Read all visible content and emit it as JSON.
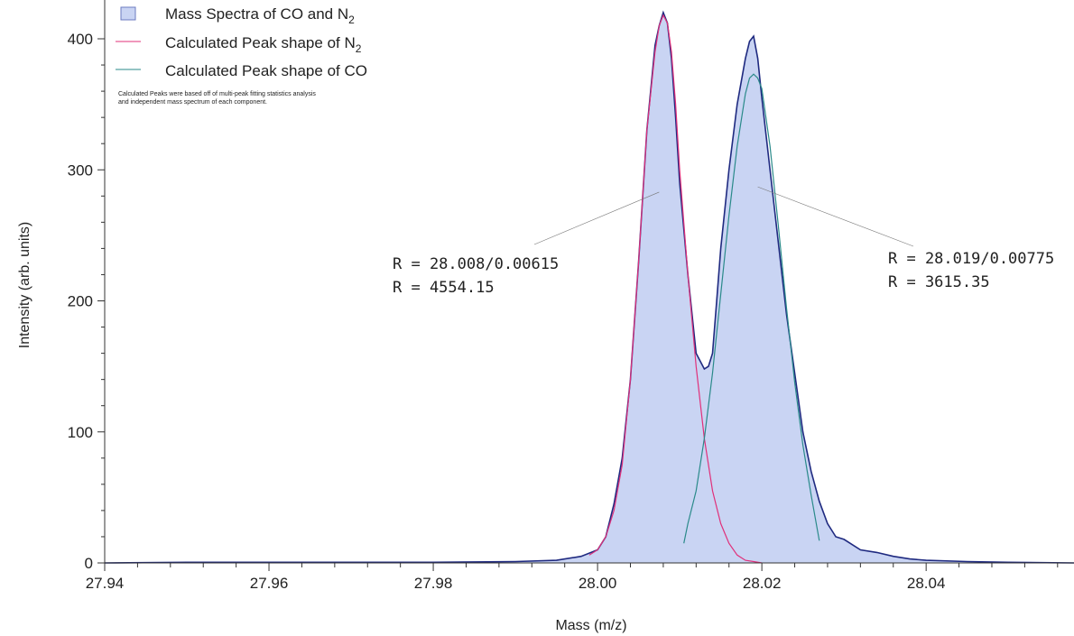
{
  "chart_data": {
    "type": "area",
    "xlabel": "Mass (m/z)",
    "ylabel": "Intensity (arb. units)",
    "xlim": [
      27.94,
      28.058
    ],
    "ylim": [
      0,
      420
    ],
    "xticks": [
      "27.94",
      "27.96",
      "27.98",
      "28.00",
      "28.02",
      "28.04"
    ],
    "yticks": [
      "0",
      "100",
      "200",
      "300",
      "400"
    ],
    "grid": false,
    "legend_position": "top-left",
    "legend": {
      "items": [
        {
          "label": "Mass Spectra of CO and N",
          "subscript": "2"
        },
        {
          "label": "Calculated Peak shape of N",
          "subscript": "2"
        },
        {
          "label": "Calculated Peak shape of CO",
          "subscript": ""
        }
      ],
      "note_line1": "Calculated Peaks were based off of multi-peak fitting statistics analysis",
      "note_line2": "and independent mass spectrum of each component."
    },
    "annotations": [
      {
        "line1": "R = 28.008/0.00615",
        "line2": "R = 4554.15",
        "target_x": 28.0075,
        "target_y": 283
      },
      {
        "line1": "R = 28.019/0.00775",
        "line2": "R = 3615.35",
        "target_x": 28.0195,
        "target_y": 287
      }
    ],
    "series": [
      {
        "name": "Mass Spectra of CO and N2",
        "style": "filled",
        "color": "#1f2a80",
        "fill": "#c9d4f3",
        "x": [
          27.94,
          27.95,
          27.96,
          27.97,
          27.98,
          27.99,
          27.995,
          27.998,
          28.0,
          28.001,
          28.002,
          28.003,
          28.004,
          28.005,
          28.006,
          28.007,
          28.0075,
          28.008,
          28.0085,
          28.009,
          28.0095,
          28.01,
          28.011,
          28.012,
          28.013,
          28.0135,
          28.014,
          28.0145,
          28.015,
          28.016,
          28.017,
          28.018,
          28.0185,
          28.019,
          28.0195,
          28.02,
          28.021,
          28.022,
          28.023,
          28.024,
          28.025,
          28.026,
          28.027,
          28.028,
          28.029,
          28.03,
          28.032,
          28.034,
          28.036,
          28.038,
          28.04,
          28.045,
          28.05,
          28.058
        ],
        "values": [
          0,
          0.5,
          0.5,
          0.5,
          0.5,
          1,
          2,
          5,
          10,
          20,
          45,
          80,
          140,
          230,
          330,
          395,
          410,
          420,
          412,
          385,
          340,
          290,
          220,
          160,
          148,
          150,
          160,
          200,
          240,
          300,
          350,
          385,
          398,
          402,
          385,
          355,
          300,
          245,
          190,
          145,
          100,
          70,
          47,
          30,
          20,
          18,
          10,
          8,
          5,
          3,
          2,
          1,
          0.5,
          0
        ]
      },
      {
        "name": "Calculated Peak shape of N2",
        "style": "line",
        "color": "#e0307a",
        "x": [
          27.999,
          28.0,
          28.001,
          28.002,
          28.003,
          28.004,
          28.005,
          28.006,
          28.007,
          28.0075,
          28.008,
          28.0085,
          28.009,
          28.0095,
          28.01,
          28.011,
          28.012,
          28.013,
          28.014,
          28.015,
          28.016,
          28.017,
          28.018,
          28.019,
          28.02
        ],
        "values": [
          6,
          10,
          20,
          40,
          75,
          140,
          230,
          330,
          390,
          410,
          418,
          412,
          390,
          350,
          300,
          220,
          150,
          95,
          55,
          30,
          15,
          6,
          2,
          1,
          0
        ]
      },
      {
        "name": "Calculated Peak shape of CO",
        "style": "line",
        "color": "#2a8a8a",
        "x": [
          28.0105,
          28.011,
          28.012,
          28.013,
          28.014,
          28.015,
          28.016,
          28.017,
          28.018,
          28.0185,
          28.019,
          28.0195,
          28.02,
          28.021,
          28.022,
          28.023,
          28.024,
          28.025,
          28.026,
          28.027
        ],
        "values": [
          15,
          30,
          55,
          95,
          145,
          205,
          265,
          318,
          358,
          370,
          373,
          370,
          362,
          318,
          258,
          195,
          138,
          90,
          52,
          17
        ]
      }
    ]
  }
}
